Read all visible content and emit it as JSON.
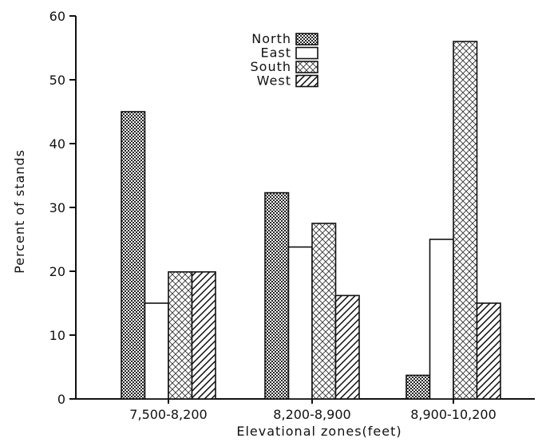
{
  "chart_data": {
    "type": "bar",
    "title": "",
    "xlabel": "Elevational zones(feet)",
    "ylabel": "Percent of stands",
    "ylim": [
      0,
      60
    ],
    "yticks": [
      0,
      10,
      20,
      30,
      40,
      50,
      60
    ],
    "categories": [
      "7,500-8,200",
      "8,200-8,900",
      "8,900-10,200"
    ],
    "series": [
      {
        "name": "North",
        "values": [
          45,
          32.3,
          3.7
        ]
      },
      {
        "name": "East",
        "values": [
          15,
          23.8,
          25
        ]
      },
      {
        "name": "South",
        "values": [
          19.9,
          27.5,
          56
        ]
      },
      {
        "name": "West",
        "values": [
          19.9,
          16.2,
          15
        ]
      }
    ],
    "legend_position": "top-center",
    "grid": false
  }
}
